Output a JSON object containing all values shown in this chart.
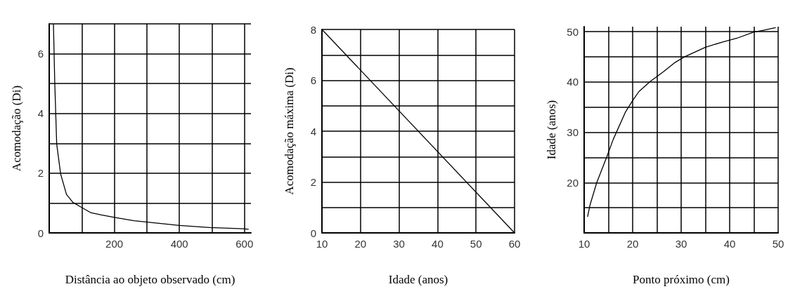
{
  "chart_data": [
    {
      "type": "line",
      "xlabel": "Distância ao objeto observado (cm)",
      "ylabel": "Acomodação (Di)",
      "grid": true,
      "marker": "none",
      "line_style": "solid",
      "x": [
        13,
        17,
        23,
        35,
        53,
        73,
        97,
        127,
        160,
        200,
        260,
        327,
        400,
        493,
        597,
        613
      ],
      "series": [
        {
          "color": "#000000",
          "values": [
            7.0,
            5.06,
            2.98,
            1.98,
            1.29,
            1.02,
            0.87,
            0.68,
            0.6,
            0.52,
            0.41,
            0.33,
            0.25,
            0.18,
            0.14,
            0.12
          ]
        }
      ],
      "xlim": [
        0,
        620
      ],
      "xticks": [
        {
          "value": 0,
          "label": null
        },
        {
          "value": 100,
          "label": null
        },
        200,
        {
          "value": 300,
          "label": null
        },
        400,
        {
          "value": 500,
          "label": null
        },
        600
      ],
      "ylim": [
        0,
        7
      ],
      "yticks": [
        0,
        {
          "value": 1,
          "label": null
        },
        2,
        {
          "value": 3,
          "label": null
        },
        4,
        {
          "value": 5,
          "label": null
        },
        6,
        {
          "value": 7,
          "label": null
        }
      ]
    },
    {
      "type": "line",
      "xlabel": "Idade (anos)",
      "ylabel": "Acomodação máxima (Di)",
      "grid": true,
      "marker": "none",
      "line_style": "solid",
      "x": [
        10,
        60
      ],
      "series": [
        {
          "color": "#000000",
          "values": [
            8,
            0
          ]
        }
      ],
      "xlim": [
        10,
        60
      ],
      "xticks": [
        10,
        20,
        30,
        40,
        50,
        60
      ],
      "ylim": [
        0,
        8
      ],
      "yticks": [
        0,
        {
          "value": 1,
          "label": null
        },
        2,
        {
          "value": 3,
          "label": null
        },
        4,
        {
          "value": 5,
          "label": null
        },
        6,
        {
          "value": 7,
          "label": null
        },
        8
      ]
    },
    {
      "type": "line",
      "xlabel": "Ponto próximo (cm)",
      "ylabel": "Idade (anos)",
      "grid": true,
      "marker": "none",
      "line_style": "solid",
      "x": [
        10.7,
        11.2,
        12.6,
        14.7,
        16,
        18.5,
        20,
        21.3,
        23.6,
        26.3,
        28.6,
        30.9,
        35,
        38.7,
        41.5,
        44.9,
        47,
        49.5
      ],
      "series": [
        {
          "color": "#000000",
          "values": [
            13.2,
            15.5,
            20,
            25.2,
            28.6,
            34,
            36.3,
            38.1,
            40.1,
            42,
            43.8,
            45.1,
            46.9,
            48,
            48.7,
            49.9,
            50.3,
            50.8
          ]
        }
      ],
      "xlim": [
        10,
        50
      ],
      "xticks": [
        10,
        {
          "value": 15,
          "label": null
        },
        20,
        {
          "value": 25,
          "label": null
        },
        30,
        {
          "value": 35,
          "label": null
        },
        40,
        {
          "value": 45,
          "label": null
        },
        50
      ],
      "ylim": [
        10,
        51
      ],
      "yticks": [
        {
          "value": 10,
          "label": null
        },
        {
          "value": 15,
          "label": null
        },
        20,
        {
          "value": 25,
          "label": null
        },
        30,
        {
          "value": 35,
          "label": null
        },
        40,
        {
          "value": 45,
          "label": null
        },
        50
      ]
    }
  ]
}
